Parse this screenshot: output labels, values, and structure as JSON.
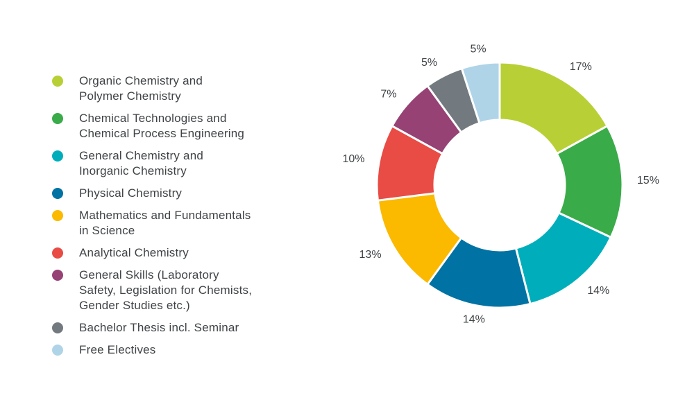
{
  "chart_data": {
    "type": "pie",
    "variant": "donut",
    "start_angle": "top, clockwise",
    "legend_placement": "left",
    "slices": [
      {
        "label": "Organic Chemistry and Polymer Chemistry",
        "value": 17,
        "value_label": "17%",
        "color": "#b8d035"
      },
      {
        "label": "Chemical Technologies and Chemical Process Engineering",
        "value": 15,
        "value_label": "15%",
        "color": "#3aab49"
      },
      {
        "label": "General Chemistry and Inorganic Chemistry",
        "value": 14,
        "value_label": "14%",
        "color": "#00aebb"
      },
      {
        "label": "Physical Chemistry",
        "value": 14,
        "value_label": "14%",
        "color": "#0072a3"
      },
      {
        "label": "Mathematics and Fundamentals in Science",
        "value": 13,
        "value_label": "13%",
        "color": "#fbb900"
      },
      {
        "label": "Analytical Chemistry",
        "value": 10,
        "value_label": "10%",
        "color": "#e84c45"
      },
      {
        "label": "General Skills (Laboratory Safety, Legislation for Chemists, Gender Studies etc.)",
        "value": 7,
        "value_label": "7%",
        "color": "#964275"
      },
      {
        "label": "Bachelor Thesis incl. Seminar",
        "value": 5,
        "value_label": "5%",
        "color": "#727a80"
      },
      {
        "label": "Free Electives",
        "value": 5,
        "value_label": "5%",
        "color": "#afd4e8"
      }
    ]
  },
  "legend": {
    "items": [
      {
        "lines": [
          "Organic Chemistry and",
          "Polymer Chemistry"
        ],
        "color": "#b8d035"
      },
      {
        "lines": [
          "Chemical Technologies and",
          "Chemical Process Engineering"
        ],
        "color": "#3aab49"
      },
      {
        "lines": [
          "General Chemistry and",
          "Inorganic Chemistry"
        ],
        "color": "#00aebb"
      },
      {
        "lines": [
          "Physical Chemistry"
        ],
        "color": "#0072a3"
      },
      {
        "lines": [
          "Mathematics and Fundamentals",
          "in Science"
        ],
        "color": "#fbb900"
      },
      {
        "lines": [
          "Analytical Chemistry"
        ],
        "color": "#e84c45"
      },
      {
        "lines": [
          "General Skills (Laboratory",
          "Safety, Legislation for Chemists,",
          "Gender Studies etc.)"
        ],
        "color": "#964275"
      },
      {
        "lines": [
          "Bachelor Thesis incl. Seminar"
        ],
        "color": "#727a80"
      },
      {
        "lines": [
          "Free Electives"
        ],
        "color": "#afd4e8"
      }
    ]
  }
}
